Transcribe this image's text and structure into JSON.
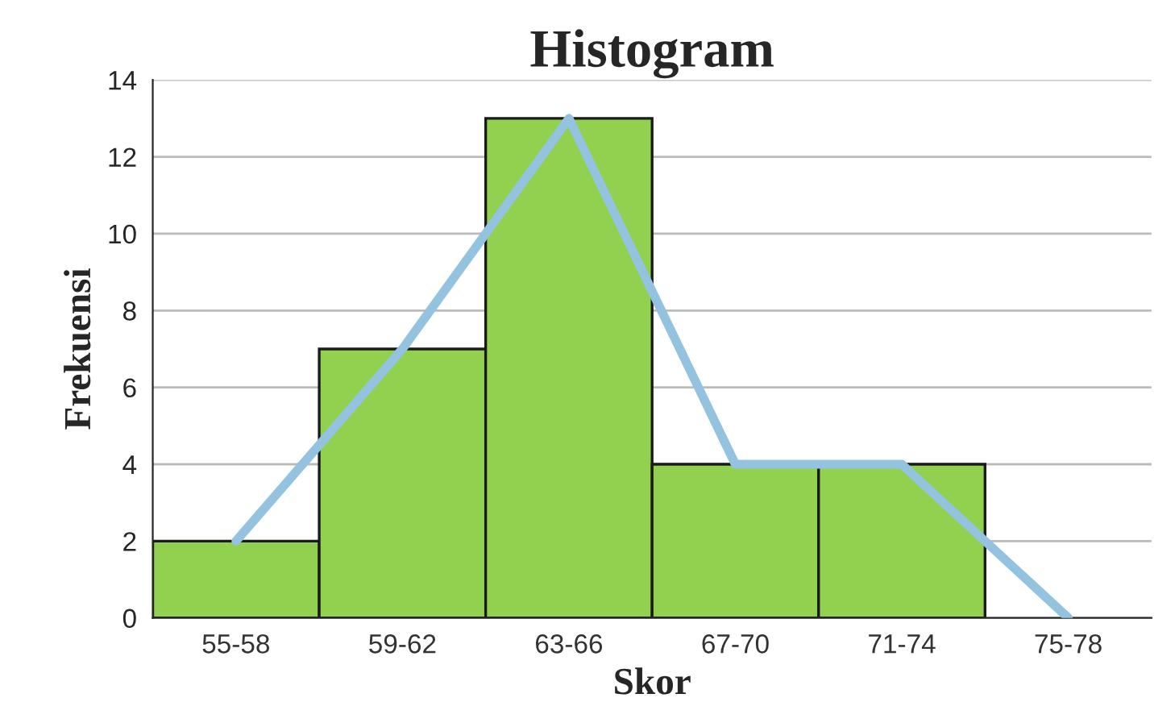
{
  "chart_data": {
    "type": "bar",
    "title": "Histogram",
    "xlabel": "Skor",
    "ylabel": "Frekuensi",
    "categories": [
      "55-58",
      "59-62",
      "63-66",
      "67-70",
      "71-74",
      "75-78"
    ],
    "series": [
      {
        "color": "#92d050",
        "values": [
          2,
          7,
          13,
          4,
          4,
          null
        ]
      },
      {
        "type": "line",
        "color": "#93c3df",
        "values": [
          2,
          7,
          13,
          4,
          4,
          0
        ]
      }
    ],
    "ylim": [
      0,
      14
    ],
    "yticks": [
      0,
      2,
      4,
      6,
      8,
      10,
      12,
      14
    ],
    "grid": "y",
    "legend": false,
    "marker": "none",
    "line_style": "solid"
  }
}
